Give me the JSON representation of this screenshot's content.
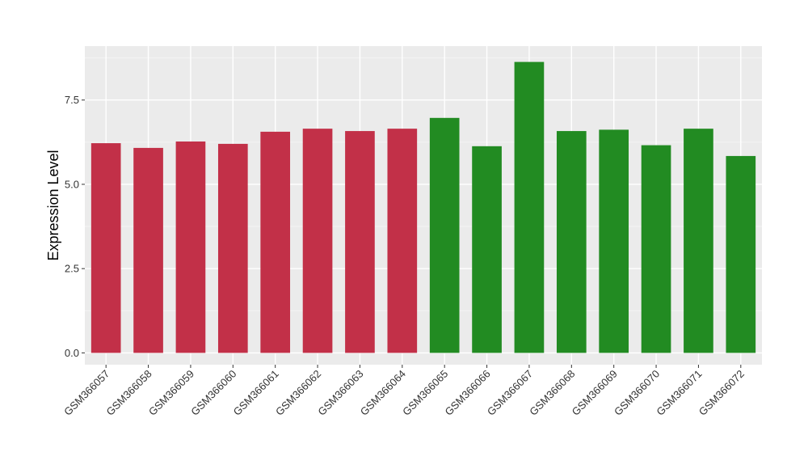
{
  "chart_data": {
    "type": "bar",
    "title": "",
    "xlabel": "",
    "ylabel": "Expression Level",
    "ylim": [
      -0.35,
      9.1
    ],
    "yticks": [
      "0.0",
      "2.5",
      "5.0",
      "7.5"
    ],
    "ytick_values": [
      0,
      2.5,
      5.0,
      7.5
    ],
    "grid": true,
    "legend": "none",
    "categories": [
      "GSM366057",
      "GSM366058",
      "GSM366059",
      "GSM366060",
      "GSM366061",
      "GSM366062",
      "GSM366063",
      "GSM366064",
      "GSM366065",
      "GSM366066",
      "GSM366067",
      "GSM366068",
      "GSM366069",
      "GSM366070",
      "GSM366071",
      "GSM366072"
    ],
    "values": [
      6.22,
      6.08,
      6.27,
      6.2,
      6.56,
      6.65,
      6.58,
      6.65,
      6.97,
      6.13,
      8.63,
      6.58,
      6.62,
      6.16,
      6.65,
      5.84
    ],
    "bar_colors": [
      "#c23048",
      "#c23048",
      "#c23048",
      "#c23048",
      "#c23048",
      "#c23048",
      "#c23048",
      "#c23048",
      "#228b22",
      "#228b22",
      "#228b22",
      "#228b22",
      "#228b22",
      "#228b22",
      "#228b22",
      "#228b22"
    ]
  },
  "colors": {
    "panel_background": "#ebebeb",
    "grid_major": "#ffffff",
    "grid_minor": "#f4f4f4",
    "tick_color": "#333333"
  }
}
